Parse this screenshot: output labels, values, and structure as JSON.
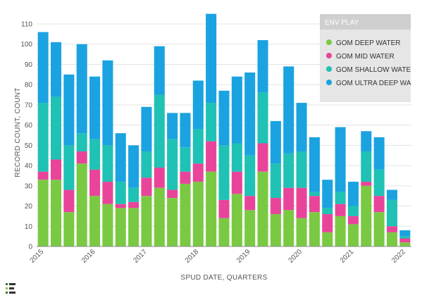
{
  "chart_data": {
    "type": "bar",
    "stacked": true,
    "title": "",
    "xlabel": "SPUD DATE, QUARTERS",
    "ylabel": "RECORD COUNT, COUNT",
    "ylim": [
      0,
      115
    ],
    "y_ticks": [
      0,
      10,
      20,
      30,
      40,
      50,
      60,
      70,
      80,
      90,
      100,
      110
    ],
    "x_tick_labels": [
      "2015",
      "2016",
      "2017",
      "2018",
      "2019",
      "2020",
      "2021",
      "2022"
    ],
    "categories": [
      "2015 Q1",
      "2015 Q2",
      "2015 Q3",
      "2015 Q4",
      "2016 Q1",
      "2016 Q2",
      "2016 Q3",
      "2016 Q4",
      "2017 Q1",
      "2017 Q2",
      "2017 Q3",
      "2017 Q4",
      "2018 Q1",
      "2018 Q2",
      "2018 Q3",
      "2018 Q4",
      "2019 Q1",
      "2019 Q2",
      "2019 Q3",
      "2019 Q4",
      "2020 Q1",
      "2020 Q2",
      "2020 Q3",
      "2020 Q4",
      "2021 Q1",
      "2021 Q2",
      "2021 Q3",
      "2021 Q4",
      "2022 Q1"
    ],
    "legend_title": "ENV PLAY",
    "legend_position": "top-right",
    "grid": true,
    "series": [
      {
        "name": "GOM DEEP WATER",
        "color": "#7ac943",
        "values": [
          33,
          33,
          17,
          41,
          25,
          21,
          19,
          19,
          25,
          29,
          24,
          31,
          32,
          37,
          14,
          26,
          18,
          37,
          16,
          18,
          14,
          17,
          7,
          15,
          11,
          30,
          17,
          7,
          2
        ]
      },
      {
        "name": "GOM MID WATER",
        "color": "#e8459a",
        "values": [
          4,
          10,
          11,
          6,
          13,
          11,
          2,
          3,
          9,
          10,
          4,
          6,
          9,
          15,
          9,
          11,
          7,
          14,
          8,
          11,
          15,
          8,
          9,
          6,
          4,
          2,
          8,
          3,
          2
        ]
      },
      {
        "name": "GOM SHALLOW WATER",
        "color": "#1fc2b4",
        "values": [
          34,
          31,
          22,
          9,
          15,
          18,
          11,
          7,
          13,
          36,
          25,
          12,
          17,
          19,
          27,
          14,
          20,
          25,
          17,
          17,
          18,
          2,
          3,
          6,
          5,
          15,
          13,
          13,
          1
        ]
      },
      {
        "name": "GOM ULTRA DEEP WATER",
        "color": "#1aa3e0",
        "values": [
          35,
          27,
          35,
          44,
          31,
          42,
          24,
          21,
          22,
          24,
          13,
          17,
          24,
          44,
          27,
          33,
          41,
          26,
          21,
          43,
          24,
          27,
          14,
          32,
          12,
          10,
          16,
          5,
          3
        ]
      }
    ]
  },
  "legend_labels": {
    "deep": "GOM DEEP WATER",
    "mid": "GOM MID WATER",
    "shallow": "GOM SHALLOW WATER",
    "ultra": "GOM ULTRA DEEP WATER"
  }
}
